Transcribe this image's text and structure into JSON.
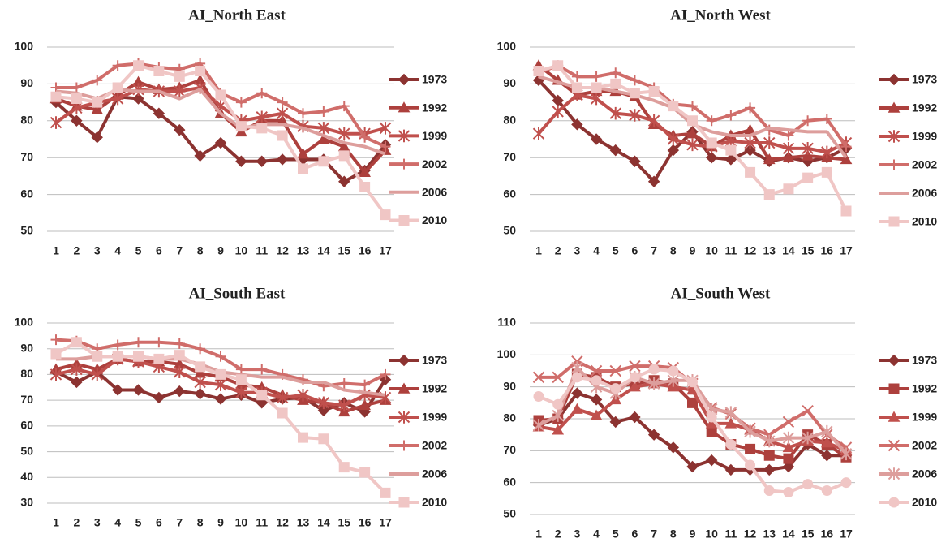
{
  "chart_data": [
    {
      "type": "line",
      "title": "AI_North East",
      "categories": [
        "1",
        "2",
        "3",
        "4",
        "5",
        "6",
        "7",
        "8",
        "9",
        "10",
        "11",
        "12",
        "13",
        "14",
        "15",
        "16",
        "17"
      ],
      "ylim": [
        50,
        100
      ],
      "yticks": [
        50,
        60,
        70,
        80,
        90,
        100
      ],
      "grid": true,
      "legend": "right",
      "series": [
        {
          "name": "1973",
          "color": "#8c3331",
          "marker": "diamond",
          "values": [
            85,
            80,
            75.5,
            86.5,
            86,
            82,
            77.5,
            70.5,
            74,
            69,
            69,
            69.5,
            69.5,
            69.5,
            63.5,
            66.5,
            73.5
          ]
        },
        {
          "name": "1992",
          "color": "#ad403d",
          "marker": "triangle",
          "values": [
            86,
            84,
            83,
            87,
            90.5,
            88.5,
            89,
            91,
            82,
            77,
            80,
            80,
            71,
            75,
            73,
            66,
            72
          ]
        },
        {
          "name": "1999",
          "color": "#c0504d",
          "marker": "star",
          "values": [
            79.5,
            83.5,
            85,
            86,
            88.5,
            88,
            88,
            89,
            84,
            80,
            81,
            82,
            78.5,
            78,
            76.5,
            76.5,
            78
          ]
        },
        {
          "name": "2002",
          "color": "#d06d6a",
          "marker": "plus",
          "values": [
            89,
            89,
            91,
            95,
            95.5,
            94.5,
            94,
            95.5,
            87.5,
            85,
            87.5,
            85,
            82,
            82.5,
            84,
            75.5,
            73
          ]
        },
        {
          "name": "2006",
          "color": "#dd9e9c",
          "marker": "none",
          "values": [
            88,
            87.5,
            86,
            88.5,
            88,
            88,
            86,
            88.5,
            82,
            78,
            79,
            79,
            78,
            76,
            74,
            73,
            71
          ]
        },
        {
          "name": "2010",
          "color": "#f0c6c5",
          "marker": "square",
          "values": [
            86.5,
            86,
            85,
            89,
            95,
            93.5,
            92,
            93.5,
            87,
            78.5,
            78,
            76,
            67,
            69,
            70.5,
            62,
            54.5
          ]
        }
      ]
    },
    {
      "type": "line",
      "title": "AI_North West",
      "categories": [
        "1",
        "2",
        "3",
        "4",
        "5",
        "6",
        "7",
        "8",
        "9",
        "10",
        "11",
        "12",
        "13",
        "14",
        "15",
        "16",
        "17"
      ],
      "ylim": [
        50,
        100
      ],
      "yticks": [
        50,
        60,
        70,
        80,
        90,
        100
      ],
      "grid": true,
      "legend": "right",
      "series": [
        {
          "name": "1973",
          "color": "#8c3331",
          "marker": "diamond",
          "values": [
            91,
            85.5,
            79,
            75,
            72,
            69,
            63.5,
            72,
            77,
            70,
            69.5,
            72,
            69,
            70,
            69,
            70,
            72.5
          ]
        },
        {
          "name": "1992",
          "color": "#ad403d",
          "marker": "triangle",
          "values": [
            95,
            91,
            87,
            88,
            88,
            86.5,
            79,
            76,
            76.5,
            73,
            76,
            77.5,
            69.5,
            70,
            70.5,
            70,
            69.5
          ]
        },
        {
          "name": "1999",
          "color": "#c0504d",
          "marker": "star",
          "values": [
            76.5,
            82.5,
            87,
            86,
            82,
            81.5,
            80,
            75,
            73.5,
            73,
            74.5,
            74,
            74,
            72.5,
            72.5,
            71.5,
            74
          ]
        },
        {
          "name": "2002",
          "color": "#d06d6a",
          "marker": "plus",
          "values": [
            93,
            95,
            92,
            92,
            93,
            91,
            89,
            84.5,
            84,
            80,
            81.5,
            83.5,
            77.5,
            76,
            80,
            80.5,
            73
          ]
        },
        {
          "name": "2006",
          "color": "#dd9e9c",
          "marker": "none",
          "values": [
            92,
            90.5,
            89,
            89,
            88,
            87,
            85.5,
            83.5,
            79,
            77,
            76,
            76,
            78,
            77.5,
            77,
            77,
            70
          ]
        },
        {
          "name": "2010",
          "color": "#f0c6c5",
          "marker": "square",
          "values": [
            93.5,
            95,
            89,
            89,
            90,
            87.5,
            88,
            84,
            80,
            74,
            72,
            66,
            60,
            61.5,
            64.5,
            66,
            55.5
          ]
        }
      ]
    },
    {
      "type": "line",
      "title": "AI_South East",
      "categories": [
        "1",
        "2",
        "3",
        "4",
        "5",
        "6",
        "7",
        "8",
        "9",
        "10",
        "11",
        "12",
        "13",
        "14",
        "15",
        "16",
        "17"
      ],
      "ylim": [
        30,
        100
      ],
      "yticks": [
        30,
        40,
        50,
        60,
        70,
        80,
        90,
        100
      ],
      "grid": true,
      "legend": "right",
      "series": [
        {
          "name": "1973",
          "color": "#8c3331",
          "marker": "diamond",
          "values": [
            81,
            77,
            81,
            74,
            74,
            71,
            73.5,
            72.5,
            70.5,
            72,
            69,
            70.5,
            71,
            66,
            69,
            65.5,
            78
          ]
        },
        {
          "name": "1992",
          "color": "#ad403d",
          "marker": "triangle",
          "values": [
            82,
            84,
            82,
            86,
            85,
            85,
            84,
            80.5,
            79,
            76,
            75,
            72,
            70,
            69,
            65.5,
            68,
            70
          ]
        },
        {
          "name": "1999",
          "color": "#c0504d",
          "marker": "star",
          "values": [
            80,
            82,
            80,
            86,
            85,
            83,
            81,
            77,
            76,
            73,
            73,
            71,
            72,
            69,
            68,
            72,
            71
          ]
        },
        {
          "name": "2002",
          "color": "#d06d6a",
          "marker": "plus",
          "values": [
            93.5,
            93,
            90,
            91.5,
            92.5,
            92.5,
            92,
            90,
            87,
            82,
            82,
            80,
            78,
            75.5,
            76.5,
            76,
            80
          ]
        },
        {
          "name": "2006",
          "color": "#dd9e9c",
          "marker": "none",
          "values": [
            86,
            86,
            87,
            87,
            87,
            86,
            86,
            84,
            81,
            80,
            79,
            79,
            77,
            77,
            74,
            73,
            72
          ]
        },
        {
          "name": "2010",
          "color": "#f0c6c5",
          "marker": "square",
          "values": [
            88,
            92.5,
            87,
            87,
            87,
            86,
            87.5,
            83,
            80,
            78,
            72,
            65,
            55.5,
            55,
            44,
            42,
            34
          ]
        }
      ]
    },
    {
      "type": "line",
      "title": "AI_South West",
      "categories": [
        "1",
        "2",
        "3",
        "4",
        "5",
        "6",
        "7",
        "8",
        "9",
        "10",
        "11",
        "12",
        "13",
        "14",
        "15",
        "16",
        "17"
      ],
      "ylim": [
        50,
        110
      ],
      "yticks": [
        50,
        60,
        70,
        80,
        90,
        100,
        110
      ],
      "grid": true,
      "legend": "right",
      "series": [
        {
          "name": "1973",
          "color": "#8c3331",
          "marker": "diamond",
          "values": [
            78,
            80,
            88,
            86,
            79,
            80.5,
            75,
            71,
            65,
            67,
            64,
            64,
            64,
            65,
            72,
            68.5,
            68.5
          ]
        },
        {
          "name": "1992",
          "color": "#ad403d",
          "marker": "square",
          "values": [
            79.5,
            80,
            94,
            93,
            90,
            91,
            92,
            91,
            85,
            76,
            72,
            70.5,
            68.5,
            67.5,
            75,
            72,
            68
          ]
        },
        {
          "name": "1999",
          "color": "#c0504d",
          "marker": "triangle",
          "values": [
            77.5,
            76.5,
            83,
            81,
            86,
            90,
            91,
            90,
            89,
            78.5,
            78.5,
            76.5,
            73,
            71,
            73,
            72.5,
            70
          ]
        },
        {
          "name": "2002",
          "color": "#d06d6a",
          "marker": "cross",
          "values": [
            93,
            93,
            98,
            95,
            95,
            96.5,
            96.5,
            96,
            91,
            83.5,
            81.5,
            77,
            75,
            79,
            82.5,
            75,
            71
          ]
        },
        {
          "name": "2006",
          "color": "#dd9e9c",
          "marker": "star",
          "values": [
            78,
            81,
            96,
            90,
            88,
            93,
            91,
            92,
            92,
            83,
            82,
            76,
            73,
            74,
            74,
            76,
            69
          ]
        },
        {
          "name": "2010",
          "color": "#f0c6c5",
          "marker": "circle",
          "values": [
            87,
            84.5,
            93,
            92,
            89.5,
            93,
            95.5,
            95,
            91.5,
            80.5,
            72,
            65.5,
            57.5,
            57,
            59.5,
            57.5,
            60
          ]
        }
      ]
    }
  ]
}
